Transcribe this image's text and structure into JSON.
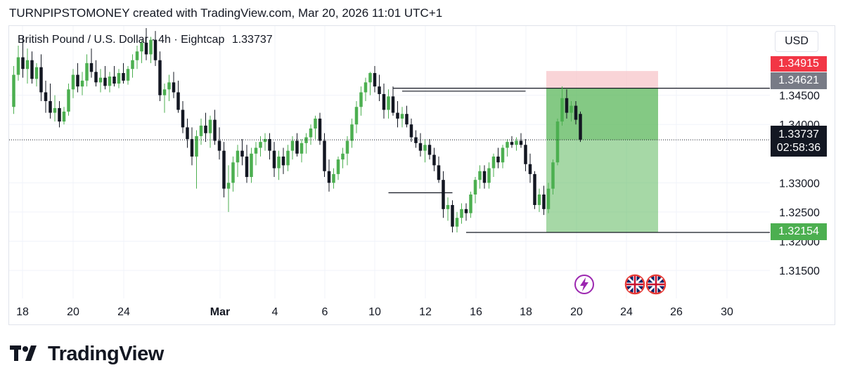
{
  "header": {
    "text": "TURNPIPSTOMONEY created with TradingView.com, Mar 20, 2026 11:01 UTC+1"
  },
  "legend": {
    "symbol": "British Pound / U.S. Dollar · 4h · Eightcap",
    "last": "1.33737"
  },
  "currency_button": "USD",
  "brand": {
    "name": "TradingView",
    "logo_icon": "tradingview-logo-icon"
  },
  "colors": {
    "up": "#4caf50",
    "down": "#131722",
    "stop_zone": "#f7c5c9",
    "target_zone": "#5cb85c",
    "stop_tag": "#f23645",
    "entry_tag": "#787b86",
    "last_tag": "#131722",
    "target_tag": "#4caf50"
  },
  "chart_data": {
    "type": "candlestick",
    "title": "",
    "x_tick_labels": [
      "18",
      "20",
      "24",
      "Mar",
      "4",
      "6",
      "10",
      "12",
      "16",
      "18",
      "20",
      "24",
      "26",
      "30"
    ],
    "y_tick_labels": [
      "1.31500",
      "1.32000",
      "1.32500",
      "1.33000",
      "1.34000",
      "1.34500"
    ],
    "ylim": [
      1.3102,
      1.3565
    ],
    "ohlc": [
      [
        1.343,
        1.35,
        1.3418,
        1.3485
      ],
      [
        1.3485,
        1.3535,
        1.3475,
        1.3515
      ],
      [
        1.3515,
        1.355,
        1.348,
        1.3495
      ],
      [
        1.3495,
        1.353,
        1.347,
        1.351
      ],
      [
        1.351,
        1.3525,
        1.347,
        1.3478
      ],
      [
        1.3478,
        1.3505,
        1.3465,
        1.3498
      ],
      [
        1.3498,
        1.352,
        1.344,
        1.3455
      ],
      [
        1.3455,
        1.3475,
        1.342,
        1.344
      ],
      [
        1.344,
        1.347,
        1.341,
        1.342
      ],
      [
        1.342,
        1.345,
        1.3405,
        1.3428
      ],
      [
        1.3428,
        1.344,
        1.3395,
        1.3405
      ],
      [
        1.3405,
        1.343,
        1.34,
        1.3422
      ],
      [
        1.3422,
        1.347,
        1.3415,
        1.346
      ],
      [
        1.346,
        1.3495,
        1.3445,
        1.3485
      ],
      [
        1.3485,
        1.3505,
        1.3455,
        1.3465
      ],
      [
        1.3465,
        1.349,
        1.345,
        1.3475
      ],
      [
        1.3475,
        1.352,
        1.3465,
        1.3505
      ],
      [
        1.3505,
        1.353,
        1.348,
        1.349
      ],
      [
        1.349,
        1.351,
        1.3465,
        1.3472
      ],
      [
        1.3472,
        1.3495,
        1.3455,
        1.348
      ],
      [
        1.348,
        1.35,
        1.346,
        1.3466
      ],
      [
        1.3466,
        1.349,
        1.3455,
        1.3482
      ],
      [
        1.3482,
        1.35,
        1.3465,
        1.347
      ],
      [
        1.347,
        1.3495,
        1.3462,
        1.3488
      ],
      [
        1.3488,
        1.3505,
        1.347,
        1.3475
      ],
      [
        1.3475,
        1.35,
        1.3468,
        1.3495
      ],
      [
        1.3495,
        1.352,
        1.348,
        1.351
      ],
      [
        1.351,
        1.3535,
        1.3495,
        1.3525
      ],
      [
        1.3525,
        1.3545,
        1.3505,
        1.354
      ],
      [
        1.354,
        1.3565,
        1.351,
        1.352
      ],
      [
        1.352,
        1.355,
        1.3505,
        1.3545
      ],
      [
        1.3545,
        1.356,
        1.35,
        1.351
      ],
      [
        1.351,
        1.3525,
        1.344,
        1.345
      ],
      [
        1.345,
        1.347,
        1.342,
        1.346
      ],
      [
        1.346,
        1.3485,
        1.344,
        1.3472
      ],
      [
        1.3472,
        1.349,
        1.3445,
        1.3455
      ],
      [
        1.3455,
        1.3475,
        1.342,
        1.3425
      ],
      [
        1.3425,
        1.344,
        1.3385,
        1.3395
      ],
      [
        1.3395,
        1.341,
        1.336,
        1.3375
      ],
      [
        1.3375,
        1.3395,
        1.333,
        1.3345
      ],
      [
        1.3345,
        1.339,
        1.329,
        1.338
      ],
      [
        1.338,
        1.341,
        1.3365,
        1.3398
      ],
      [
        1.3398,
        1.342,
        1.337,
        1.3385
      ],
      [
        1.3385,
        1.3415,
        1.336,
        1.3408
      ],
      [
        1.3408,
        1.3425,
        1.3365,
        1.3372
      ],
      [
        1.3372,
        1.3395,
        1.334,
        1.3355
      ],
      [
        1.3355,
        1.337,
        1.3275,
        1.329
      ],
      [
        1.329,
        1.333,
        1.325,
        1.33
      ],
      [
        1.33,
        1.3345,
        1.3285,
        1.3335
      ],
      [
        1.3335,
        1.3365,
        1.331,
        1.3355
      ],
      [
        1.3355,
        1.3375,
        1.333,
        1.3345
      ],
      [
        1.3345,
        1.3365,
        1.33,
        1.331
      ],
      [
        1.331,
        1.336,
        1.33,
        1.335
      ],
      [
        1.335,
        1.337,
        1.333,
        1.336
      ],
      [
        1.336,
        1.338,
        1.3345,
        1.337
      ],
      [
        1.337,
        1.3385,
        1.3355,
        1.3375
      ],
      [
        1.3375,
        1.3385,
        1.334,
        1.3355
      ],
      [
        1.3355,
        1.337,
        1.331,
        1.3325
      ],
      [
        1.3325,
        1.3355,
        1.3305,
        1.3345
      ],
      [
        1.3345,
        1.336,
        1.3315,
        1.333
      ],
      [
        1.333,
        1.3365,
        1.332,
        1.3355
      ],
      [
        1.3355,
        1.338,
        1.334,
        1.3372
      ],
      [
        1.3372,
        1.3385,
        1.3345,
        1.335
      ],
      [
        1.335,
        1.3375,
        1.3335,
        1.3368
      ],
      [
        1.3368,
        1.3385,
        1.335,
        1.3378
      ],
      [
        1.3378,
        1.34,
        1.3365,
        1.3393
      ],
      [
        1.3393,
        1.3415,
        1.3375,
        1.341
      ],
      [
        1.341,
        1.342,
        1.3365,
        1.3372
      ],
      [
        1.3372,
        1.3385,
        1.331,
        1.332
      ],
      [
        1.332,
        1.334,
        1.3285,
        1.33
      ],
      [
        1.33,
        1.3325,
        1.329,
        1.3315
      ],
      [
        1.3315,
        1.3345,
        1.3305,
        1.334
      ],
      [
        1.334,
        1.336,
        1.3325,
        1.335
      ],
      [
        1.335,
        1.338,
        1.333,
        1.3372
      ],
      [
        1.3372,
        1.341,
        1.336,
        1.34
      ],
      [
        1.34,
        1.344,
        1.3385,
        1.343
      ],
      [
        1.343,
        1.3465,
        1.3415,
        1.3455
      ],
      [
        1.3455,
        1.348,
        1.344,
        1.3472
      ],
      [
        1.3472,
        1.349,
        1.345,
        1.3488
      ],
      [
        1.3488,
        1.35,
        1.3455,
        1.3465
      ],
      [
        1.3465,
        1.3485,
        1.344,
        1.3452
      ],
      [
        1.3452,
        1.347,
        1.341,
        1.3425
      ],
      [
        1.3425,
        1.346,
        1.341,
        1.3448
      ],
      [
        1.3448,
        1.3465,
        1.3415,
        1.342
      ],
      [
        1.342,
        1.344,
        1.3395,
        1.341
      ],
      [
        1.341,
        1.343,
        1.3395,
        1.3418
      ],
      [
        1.3418,
        1.3432,
        1.3395,
        1.34
      ],
      [
        1.34,
        1.341,
        1.337,
        1.3378
      ],
      [
        1.3378,
        1.339,
        1.336,
        1.3368
      ],
      [
        1.3368,
        1.3385,
        1.3345,
        1.3355
      ],
      [
        1.3355,
        1.3375,
        1.3335,
        1.3365
      ],
      [
        1.3365,
        1.3375,
        1.334,
        1.3348
      ],
      [
        1.3348,
        1.336,
        1.332,
        1.333
      ],
      [
        1.333,
        1.3345,
        1.33,
        1.3305
      ],
      [
        1.3305,
        1.332,
        1.324,
        1.3255
      ],
      [
        1.3255,
        1.3275,
        1.3235,
        1.3262
      ],
      [
        1.3262,
        1.327,
        1.3215,
        1.3225
      ],
      [
        1.3225,
        1.325,
        1.3215,
        1.324
      ],
      [
        1.324,
        1.3265,
        1.323,
        1.3255
      ],
      [
        1.3255,
        1.3265,
        1.3235,
        1.3248
      ],
      [
        1.3248,
        1.3285,
        1.324,
        1.328
      ],
      [
        1.328,
        1.331,
        1.3265,
        1.3305
      ],
      [
        1.3305,
        1.333,
        1.329,
        1.332
      ],
      [
        1.332,
        1.333,
        1.329,
        1.33
      ],
      [
        1.33,
        1.3335,
        1.329,
        1.3325
      ],
      [
        1.3325,
        1.335,
        1.331,
        1.3345
      ],
      [
        1.3345,
        1.336,
        1.3325,
        1.3335
      ],
      [
        1.3335,
        1.3365,
        1.3325,
        1.336
      ],
      [
        1.336,
        1.3375,
        1.3345,
        1.337
      ],
      [
        1.337,
        1.338,
        1.336,
        1.3365
      ],
      [
        1.3365,
        1.3378,
        1.3355,
        1.3372
      ],
      [
        1.3372,
        1.3385,
        1.336,
        1.3365
      ],
      [
        1.3365,
        1.3375,
        1.332,
        1.3332
      ],
      [
        1.3332,
        1.335,
        1.33,
        1.3315
      ],
      [
        1.3315,
        1.332,
        1.3255,
        1.3262
      ],
      [
        1.3262,
        1.329,
        1.325,
        1.328
      ],
      [
        1.328,
        1.3295,
        1.3245,
        1.3255
      ],
      [
        1.3255,
        1.33,
        1.3248,
        1.329
      ],
      [
        1.329,
        1.334,
        1.328,
        1.3335
      ],
      [
        1.3335,
        1.341,
        1.333,
        1.3405
      ],
      [
        1.3405,
        1.3465,
        1.3398,
        1.3445
      ],
      [
        1.3445,
        1.346,
        1.341,
        1.342
      ],
      [
        1.342,
        1.344,
        1.3405,
        1.3432
      ],
      [
        1.3432,
        1.344,
        1.34,
        1.3408
      ],
      [
        1.3418,
        1.3422,
        1.337,
        1.3374
      ]
    ],
    "position": {
      "stop": 1.34915,
      "entry": 1.34621,
      "target": 1.32154,
      "last": 1.33737,
      "countdown": "02:58:36"
    }
  }
}
